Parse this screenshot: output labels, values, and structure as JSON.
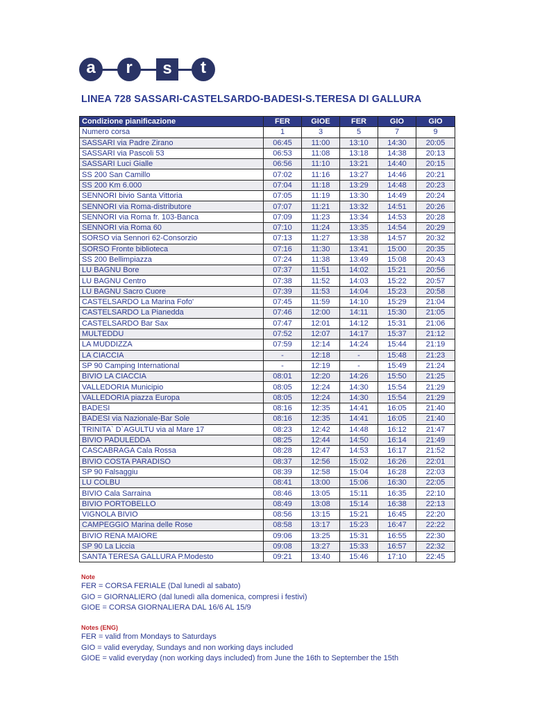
{
  "logo": {
    "letters": [
      "a",
      "r",
      "s",
      "t"
    ],
    "color": "#2a3466"
  },
  "title": "LINEA 728 SASSARI-CASTELSARDO-BADESI-S.TERESA DI GALLURA",
  "table": {
    "header": [
      "Condizione pianificazione",
      "FER",
      "GIOE",
      "FER",
      "GIO",
      "GIO"
    ],
    "rows": [
      [
        "Numero corsa",
        "1",
        "3",
        "5",
        "7",
        "9"
      ],
      [
        "SASSARI via Padre Zirano",
        "06:45",
        "11:00",
        "13:10",
        "14:30",
        "20:05"
      ],
      [
        "SASSARI via Pascoli 53",
        "06:53",
        "11:08",
        "13:18",
        "14:38",
        "20:13"
      ],
      [
        "SASSARI Luci Gialle",
        "06:56",
        "11:10",
        "13:21",
        "14:40",
        "20:15"
      ],
      [
        "SS 200 San Camillo",
        "07:02",
        "11:16",
        "13:27",
        "14:46",
        "20:21"
      ],
      [
        "SS 200 Km 6.000",
        "07:04",
        "11:18",
        "13:29",
        "14:48",
        "20:23"
      ],
      [
        "SENNORI bivio Santa Vittoria",
        "07:05",
        "11:19",
        "13:30",
        "14:49",
        "20:24"
      ],
      [
        "SENNORI via Roma-distributore",
        "07:07",
        "11:21",
        "13:32",
        "14:51",
        "20:26"
      ],
      [
        "SENNORI via Roma fr. 103-Banca",
        "07:09",
        "11:23",
        "13:34",
        "14:53",
        "20:28"
      ],
      [
        "SENNORI via Roma 60",
        "07:10",
        "11:24",
        "13:35",
        "14:54",
        "20:29"
      ],
      [
        "SORSO via Sennori 62-Consorzio",
        "07:13",
        "11:27",
        "13:38",
        "14:57",
        "20:32"
      ],
      [
        "SORSO Fronte biblioteca",
        "07:16",
        "11:30",
        "13:41",
        "15:00",
        "20:35"
      ],
      [
        "SS 200 Bellimpiazza",
        "07:24",
        "11:38",
        "13:49",
        "15:08",
        "20:43"
      ],
      [
        "LU BAGNU Bore",
        "07:37",
        "11:51",
        "14:02",
        "15:21",
        "20:56"
      ],
      [
        "LU BAGNU Centro",
        "07:38",
        "11:52",
        "14:03",
        "15:22",
        "20:57"
      ],
      [
        "LU BAGNU Sacro Cuore",
        "07:39",
        "11:53",
        "14:04",
        "15:23",
        "20:58"
      ],
      [
        "CASTELSARDO La Marina Fofo'",
        "07:45",
        "11:59",
        "14:10",
        "15:29",
        "21:04"
      ],
      [
        "CASTELSARDO La Pianedda",
        "07:46",
        "12:00",
        "14:11",
        "15:30",
        "21:05"
      ],
      [
        "CASTELSARDO Bar Sax",
        "07:47",
        "12:01",
        "14:12",
        "15:31",
        "21:06"
      ],
      [
        "MULTEDDU",
        "07:52",
        "12:07",
        "14:17",
        "15:37",
        "21:12"
      ],
      [
        "LA MUDDIZZA",
        "07:59",
        "12:14",
        "14:24",
        "15:44",
        "21:19"
      ],
      [
        "LA CIACCIA",
        "-",
        "12:18",
        "-",
        "15:48",
        "21:23"
      ],
      [
        "SP 90 Camping International",
        "-",
        "12:19",
        "-",
        "15:49",
        "21:24"
      ],
      [
        "BIVIO LA CIACCIA",
        "08:01",
        "12:20",
        "14:26",
        "15:50",
        "21:25"
      ],
      [
        "VALLEDORIA Municipio",
        "08:05",
        "12:24",
        "14:30",
        "15:54",
        "21:29"
      ],
      [
        "VALLEDORIA piazza Europa",
        "08:05",
        "12:24",
        "14:30",
        "15:54",
        "21:29"
      ],
      [
        "BADESI",
        "08:16",
        "12:35",
        "14:41",
        "16:05",
        "21:40"
      ],
      [
        "BADESI via Nazionale-Bar Sole",
        "08:16",
        "12:35",
        "14:41",
        "16:05",
        "21:40"
      ],
      [
        "TRINITA` D`AGULTU via al Mare 17",
        "08:23",
        "12:42",
        "14:48",
        "16:12",
        "21:47"
      ],
      [
        "BIVIO PADULEDDA",
        "08:25",
        "12:44",
        "14:50",
        "16:14",
        "21:49"
      ],
      [
        "CASCABRAGA Cala Rossa",
        "08:28",
        "12:47",
        "14:53",
        "16:17",
        "21:52"
      ],
      [
        "BIVIO COSTA PARADISO",
        "08:37",
        "12:56",
        "15:02",
        "16:26",
        "22:01"
      ],
      [
        "SP 90 Falsaggiu",
        "08:39",
        "12:58",
        "15:04",
        "16:28",
        "22:03"
      ],
      [
        "LU COLBU",
        "08:41",
        "13:00",
        "15:06",
        "16:30",
        "22:05"
      ],
      [
        "BIVIO Cala Sarraina",
        "08:46",
        "13:05",
        "15:11",
        "16:35",
        "22:10"
      ],
      [
        "BIVIO PORTOBELLO",
        "08:49",
        "13:08",
        "15:14",
        "16:38",
        "22:13"
      ],
      [
        "VIGNOLA BIVIO",
        "08:56",
        "13:15",
        "15:21",
        "16:45",
        "22:20"
      ],
      [
        "CAMPEGGIO Marina delle Rose",
        "08:58",
        "13:17",
        "15:23",
        "16:47",
        "22:22"
      ],
      [
        "BIVIO RENA MAIORE",
        "09:06",
        "13:25",
        "15:31",
        "16:55",
        "22:30"
      ],
      [
        "SP 90 La Liccia",
        "09:08",
        "13:27",
        "15:33",
        "16:57",
        "22:32"
      ],
      [
        "SANTA TERESA GALLURA P.Modesto",
        "09:21",
        "13:40",
        "15:46",
        "17:10",
        "22:45"
      ]
    ]
  },
  "notes_it": {
    "heading": "Note",
    "lines": [
      "FER = CORSA FERIALE (Dal lunedì al sabato)",
      "GIO = GIORNALIERO (dal lunedì alla domenica, compresi i festivi)",
      "GIOE = CORSA GIORNALIERA DAL 16/6 AL 15/9"
    ]
  },
  "notes_en": {
    "heading": "Notes (ENG)",
    "lines": [
      "FER = valid from Mondays to Saturdays",
      "GIO = valid everyday, Sundays and non working days included",
      "GIOE = valid everyday (non working days included) from June the 16th to September the 15th"
    ]
  },
  "colors": {
    "header_bg": "#2e3a87",
    "text": "#2b3990",
    "note_heading": "#c0272d"
  }
}
